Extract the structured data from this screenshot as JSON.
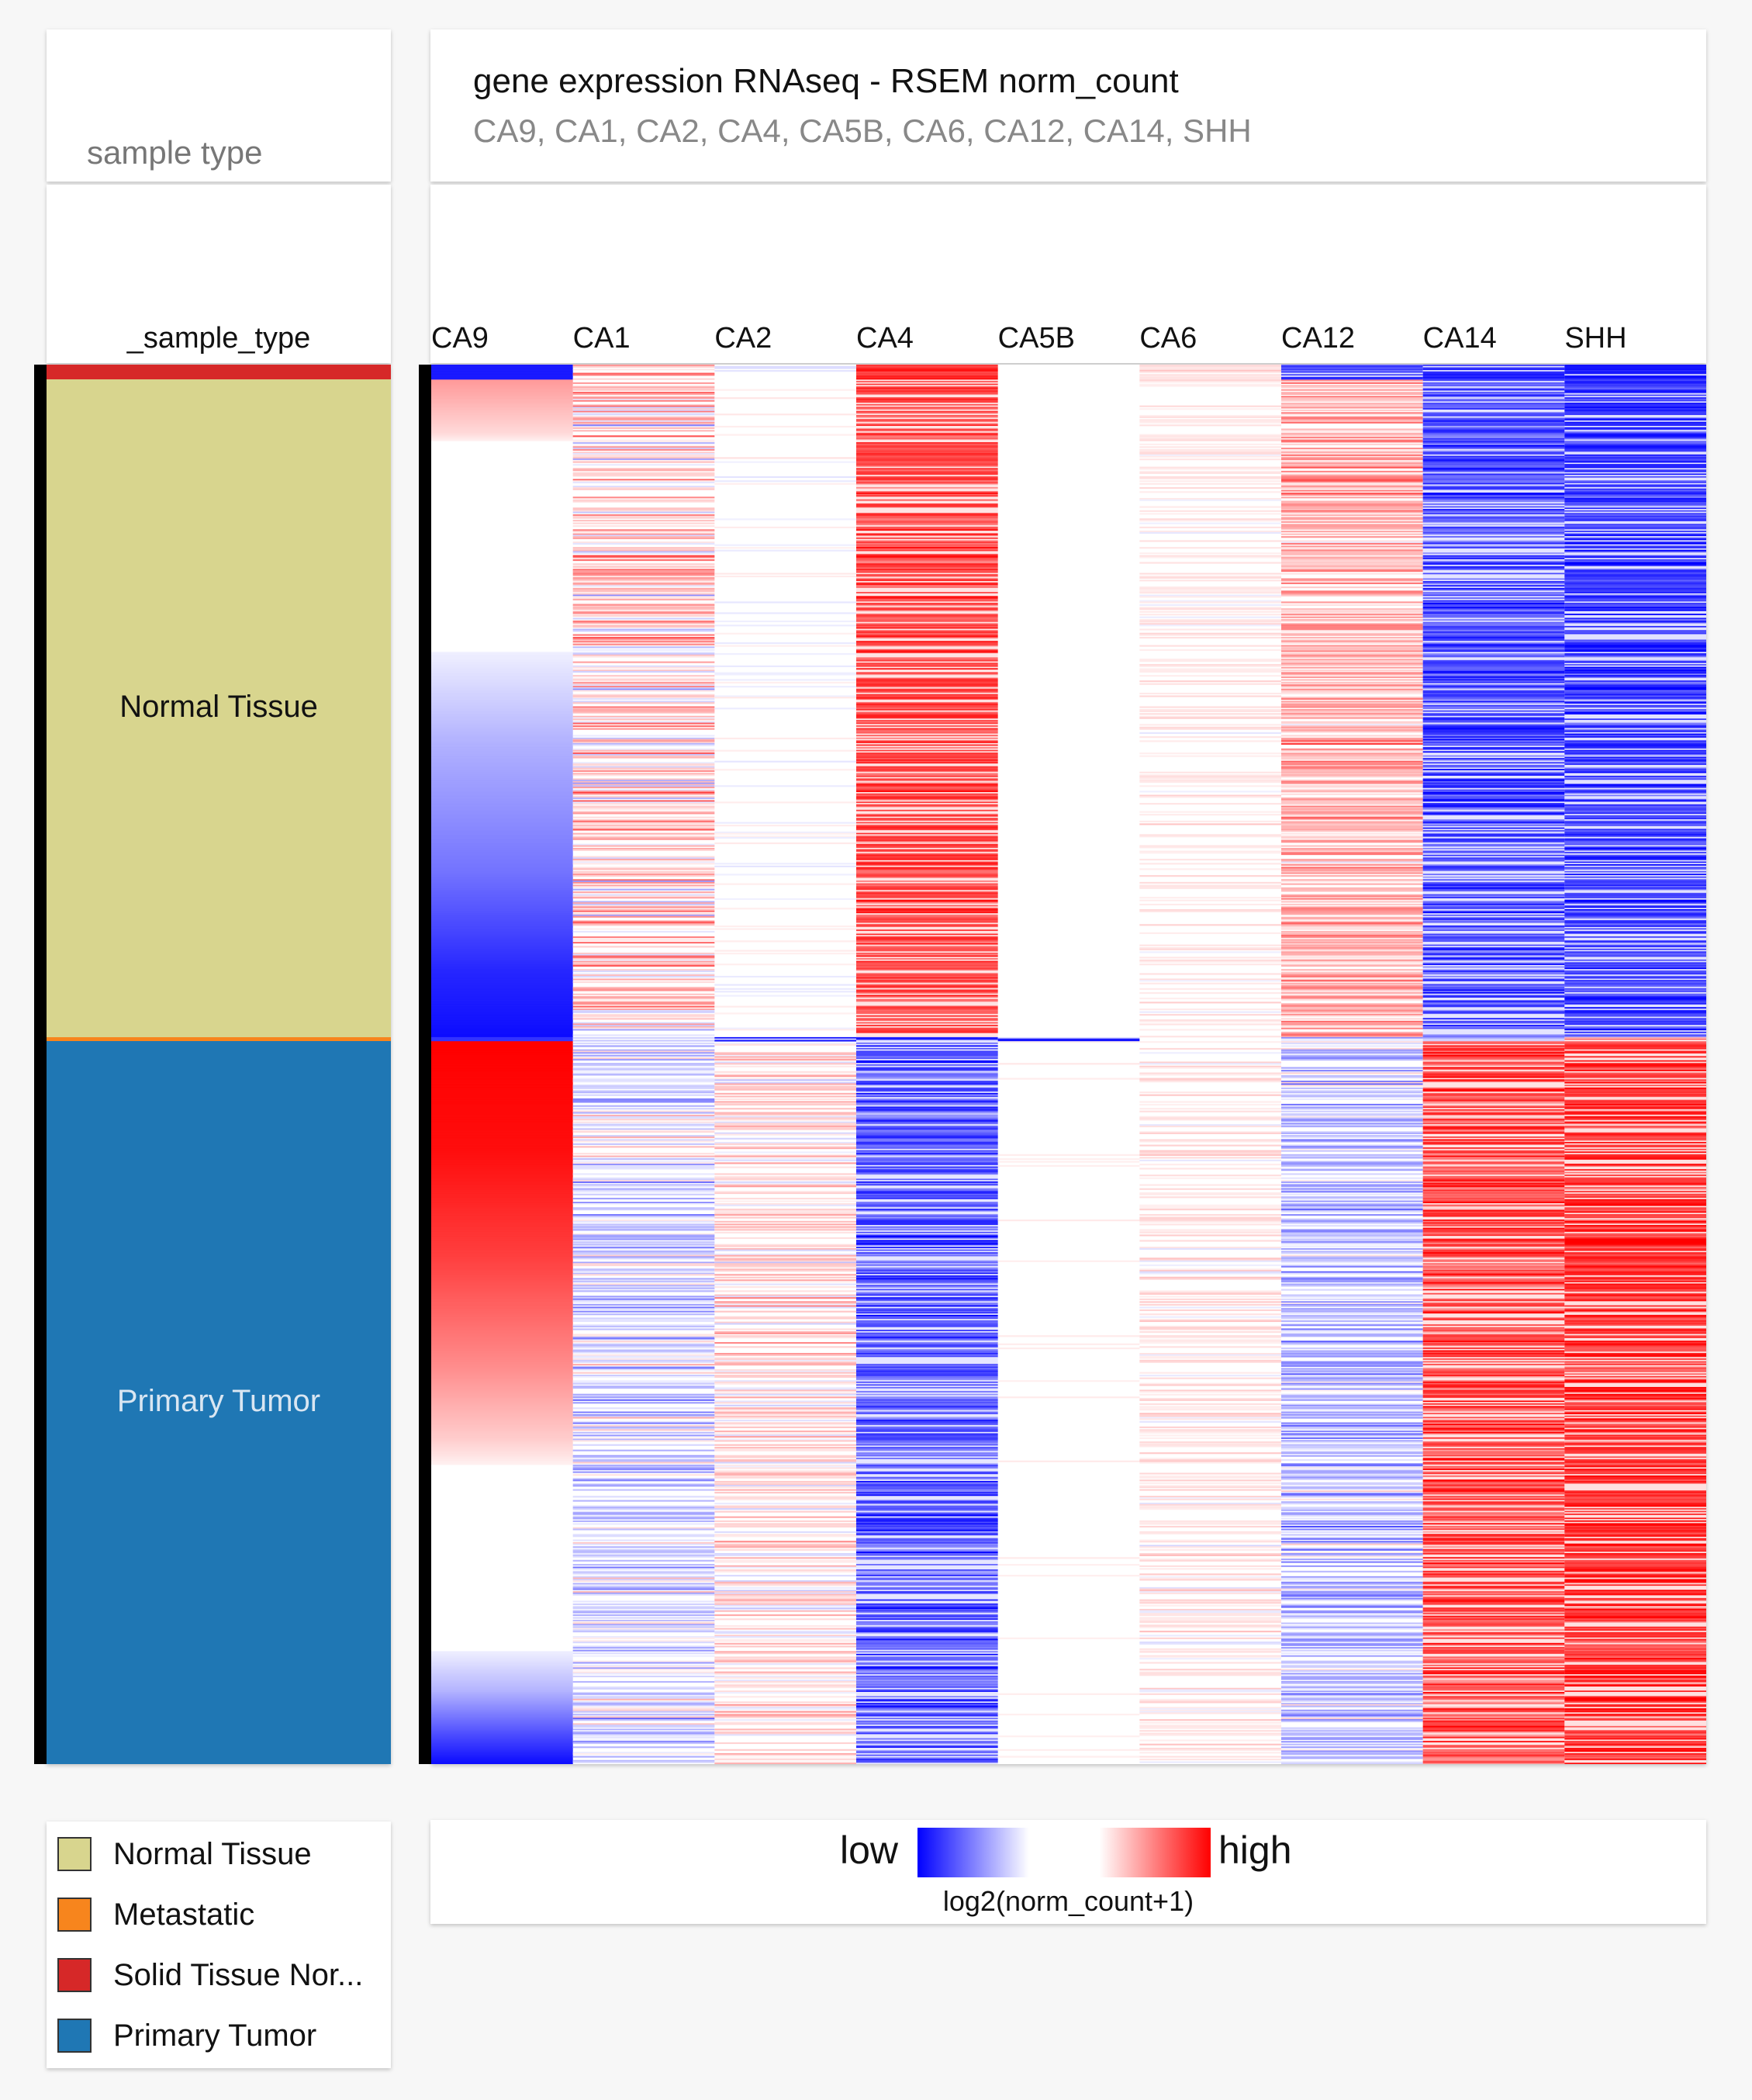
{
  "sample_header": {
    "title": "sample type",
    "column_label": "_sample_type"
  },
  "heatmap_header": {
    "title": "gene expression RNAseq - RSEM norm_count",
    "subtitle": "CA9, CA1, CA2, CA4, CA5B, CA6, CA12, CA14, SHH"
  },
  "colors": {
    "normal_tissue": "#d8d58e",
    "metastatic": "#f7851d",
    "solid_tissue_normal": "#d62828",
    "primary_tumor": "#1f77b4",
    "low": "#0000ff",
    "mid": "#ffffff",
    "high": "#ff0000"
  },
  "sample_segments": [
    {
      "name": "Solid Tissue Normal",
      "count": 11,
      "color": "#d62828",
      "label": ""
    },
    {
      "name": "Normal Tissue",
      "count": 483,
      "color": "#d8d58e",
      "label": "Normal Tissue",
      "label_color": "#111111"
    },
    {
      "name": "Metastatic",
      "count": 3,
      "color": "#f7851d",
      "label": ""
    },
    {
      "name": "Primary Tumor",
      "count": 531,
      "color": "#1f77b4",
      "label": "Primary Tumor",
      "label_color": "#d9e6f2"
    }
  ],
  "legend": {
    "items": [
      {
        "label": "Normal Tissue",
        "color": "#d8d58e"
      },
      {
        "label": "Metastatic",
        "color": "#f7851d"
      },
      {
        "label": "Solid Tissue Nor...",
        "color": "#d62828"
      },
      {
        "label": "Primary Tumor",
        "color": "#1f77b4"
      }
    ]
  },
  "colorbar": {
    "low_label": "low",
    "high_label": "high",
    "unit_label": "log2(norm_count+1)"
  },
  "chart_data": {
    "type": "heatmap",
    "title": "gene expression RNAseq - RSEM norm_count",
    "genes": [
      "CA9",
      "CA1",
      "CA2",
      "CA4",
      "CA5B",
      "CA6",
      "CA12",
      "CA14",
      "SHH"
    ],
    "value_scale": {
      "min": -1,
      "max": 1,
      "low_label": "low",
      "high_label": "high",
      "unit": "log2(norm_count+1)"
    },
    "row_groups": [
      {
        "name": "Solid Tissue Normal",
        "rows": 11
      },
      {
        "name": "Normal Tissue",
        "rows": 483
      },
      {
        "name": "Metastatic",
        "rows": 3
      },
      {
        "name": "Primary Tumor",
        "rows": 531
      }
    ],
    "series": [
      {
        "name": "CA9",
        "sorted": true,
        "group_profiles": [
          {
            "group": "Solid Tissue Normal",
            "points": [
              [
                0,
                -0.9
              ],
              [
                1,
                -0.9
              ]
            ]
          },
          {
            "group": "Normal Tissue",
            "points": [
              [
                0,
                0.4
              ],
              [
                0.08,
                0.15
              ],
              [
                0.1,
                0
              ],
              [
                0.38,
                0
              ],
              [
                0.55,
                -0.3
              ],
              [
                0.75,
                -0.55
              ],
              [
                0.9,
                -0.85
              ],
              [
                1,
                -0.95
              ]
            ]
          },
          {
            "group": "Metastatic",
            "points": [
              [
                0,
                -0.8
              ],
              [
                1,
                -0.8
              ]
            ]
          },
          {
            "group": "Primary Tumor",
            "points": [
              [
                0,
                1
              ],
              [
                0.15,
                0.95
              ],
              [
                0.3,
                0.75
              ],
              [
                0.45,
                0.45
              ],
              [
                0.55,
                0.2
              ],
              [
                0.6,
                0
              ],
              [
                0.83,
                0
              ],
              [
                0.9,
                -0.3
              ],
              [
                0.96,
                -0.7
              ],
              [
                1,
                -0.95
              ]
            ]
          }
        ]
      },
      {
        "name": "CA1",
        "group_profiles": [
          {
            "group": "Solid Tissue Normal",
            "mean": 0.2,
            "spread": 0.45
          },
          {
            "group": "Normal Tissue",
            "mean": 0.15,
            "spread": 0.45
          },
          {
            "group": "Metastatic",
            "mean": -0.2,
            "spread": 0.3
          },
          {
            "group": "Primary Tumor",
            "mean": -0.12,
            "spread": 0.35
          }
        ]
      },
      {
        "name": "CA2",
        "group_profiles": [
          {
            "group": "Solid Tissue Normal",
            "mean": -0.05,
            "spread": 0.1
          },
          {
            "group": "Normal Tissue",
            "mean": 0.0,
            "spread": 0.08
          },
          {
            "group": "Metastatic",
            "mean": -0.9,
            "spread": 0.05
          },
          {
            "group": "Primary Tumor",
            "mean": 0.12,
            "spread": 0.3
          }
        ]
      },
      {
        "name": "CA4",
        "group_profiles": [
          {
            "group": "Solid Tissue Normal",
            "mean": 0.8,
            "spread": 0.15
          },
          {
            "group": "Normal Tissue",
            "mean": 0.72,
            "spread": 0.22
          },
          {
            "group": "Metastatic",
            "mean": -0.9,
            "spread": 0.05
          },
          {
            "group": "Primary Tumor",
            "mean": -0.65,
            "spread": 0.3
          }
        ]
      },
      {
        "name": "CA5B",
        "group_profiles": [
          {
            "group": "Solid Tissue Normal",
            "mean": 0.0,
            "spread": 0.02
          },
          {
            "group": "Normal Tissue",
            "mean": 0.0,
            "spread": 0.02
          },
          {
            "group": "Metastatic",
            "mean": -0.9,
            "spread": 0.05
          },
          {
            "group": "Primary Tumor",
            "mean": 0.02,
            "spread": 0.05
          }
        ]
      },
      {
        "name": "CA6",
        "group_profiles": [
          {
            "group": "Solid Tissue Normal",
            "mean": 0.1,
            "spread": 0.1
          },
          {
            "group": "Normal Tissue",
            "mean": 0.05,
            "spread": 0.12
          },
          {
            "group": "Metastatic",
            "mean": 0.0,
            "spread": 0.05
          },
          {
            "group": "Primary Tumor",
            "mean": 0.06,
            "spread": 0.15
          }
        ]
      },
      {
        "name": "CA12",
        "group_profiles": [
          {
            "group": "Solid Tissue Normal",
            "mean": -0.7,
            "spread": 0.2
          },
          {
            "group": "Normal Tissue",
            "mean": 0.32,
            "spread": 0.3
          },
          {
            "group": "Metastatic",
            "mean": -0.5,
            "spread": 0.3
          },
          {
            "group": "Primary Tumor",
            "mean": -0.22,
            "spread": 0.35
          }
        ]
      },
      {
        "name": "CA14",
        "group_profiles": [
          {
            "group": "Solid Tissue Normal",
            "mean": -0.85,
            "spread": 0.1
          },
          {
            "group": "Normal Tissue",
            "mean": -0.7,
            "spread": 0.3
          },
          {
            "group": "Metastatic",
            "mean": -0.3,
            "spread": 0.3
          },
          {
            "group": "Primary Tumor",
            "mean": 0.72,
            "spread": 0.35
          }
        ]
      },
      {
        "name": "SHH",
        "group_profiles": [
          {
            "group": "Solid Tissue Normal",
            "mean": -0.9,
            "spread": 0.1
          },
          {
            "group": "Normal Tissue",
            "mean": -0.78,
            "spread": 0.25
          },
          {
            "group": "Metastatic",
            "mean": 0.2,
            "spread": 0.3
          },
          {
            "group": "Primary Tumor",
            "mean": 0.82,
            "spread": 0.25
          }
        ]
      }
    ]
  }
}
